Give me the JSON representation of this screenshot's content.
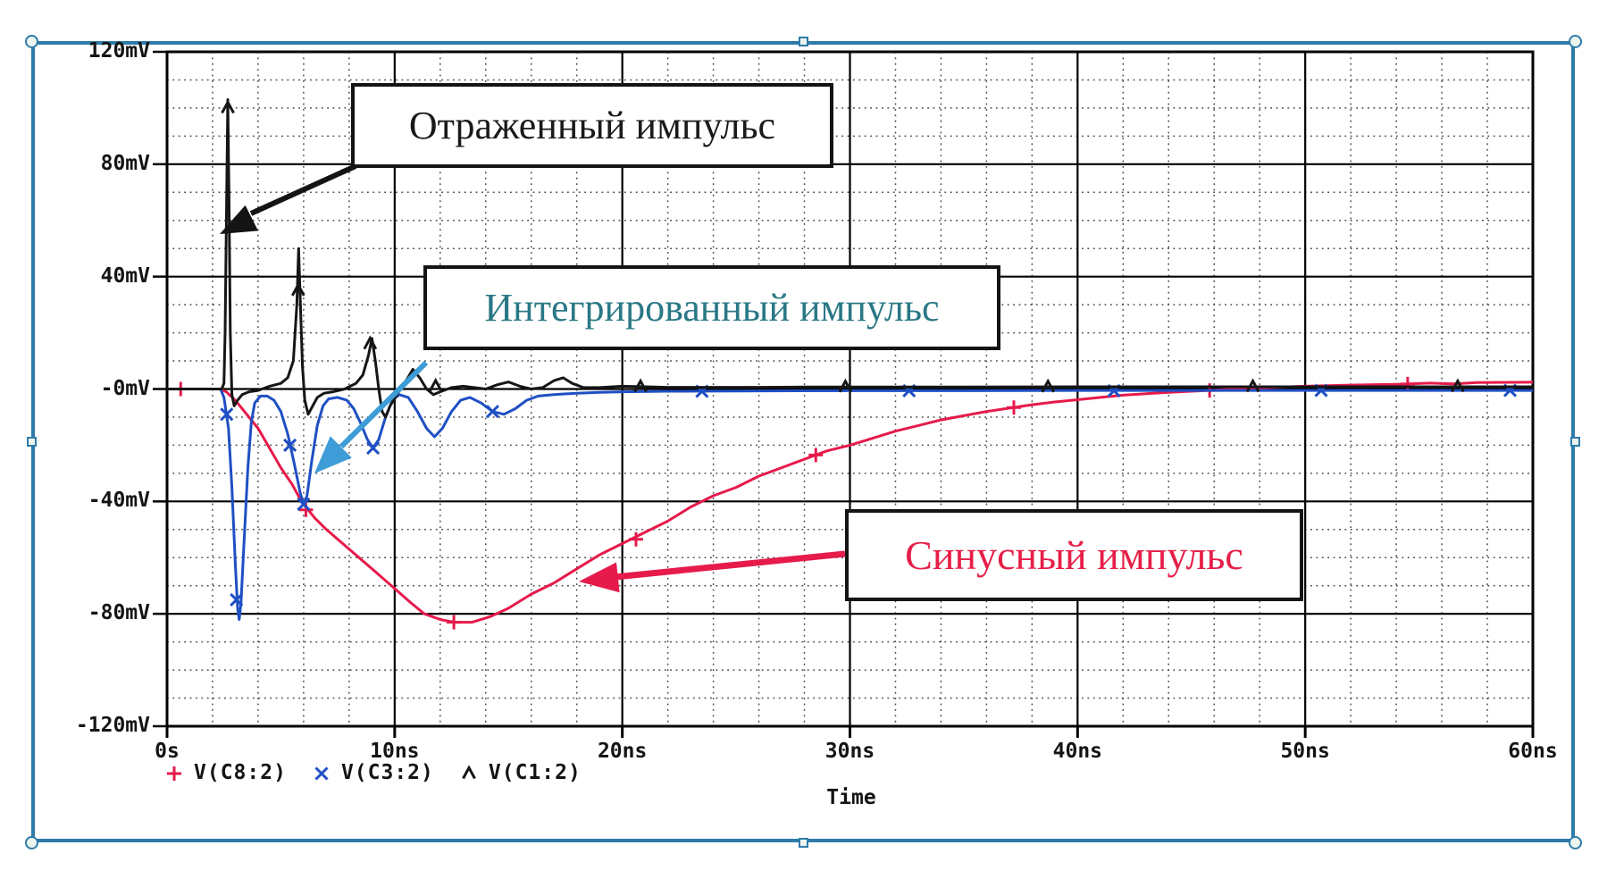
{
  "selection": {
    "border_color": "#2d7ba9",
    "handle_fill": "#edf5ef"
  },
  "chart_data": {
    "type": "line",
    "title": "",
    "xlabel": "Time",
    "ylabel": "",
    "xlim": [
      0,
      60
    ],
    "ylim": [
      -120,
      120
    ],
    "x_major_step": 10,
    "y_major_step": 40,
    "x_minor_step": 2,
    "y_minor_step": 10,
    "grid": "major solid + minor dotted",
    "legend_position": "bottom-left",
    "x_ticks": {
      "labels": [
        "0s",
        "10ns",
        "20ns",
        "30ns",
        "40ns",
        "50ns",
        "60ns"
      ],
      "values": [
        0,
        10,
        20,
        30,
        40,
        50,
        60
      ]
    },
    "y_ticks": {
      "labels": [
        "120mV",
        "80mV",
        "40mV",
        "-0mV",
        "-40mV",
        "-80mV",
        "-120mV"
      ],
      "values": [
        120,
        80,
        40,
        0,
        -40,
        -80,
        -120
      ]
    },
    "series": [
      {
        "name": "V(C8:2)",
        "description_ru": "Синусный импульс",
        "color": "#e61a4b",
        "marker": "plus",
        "points": [
          [
            0,
            0
          ],
          [
            2.3,
            0
          ],
          [
            2.6,
            -1
          ],
          [
            3,
            -4
          ],
          [
            3.5,
            -9
          ],
          [
            4,
            -14
          ],
          [
            4.5,
            -21
          ],
          [
            5,
            -28
          ],
          [
            5.5,
            -34
          ],
          [
            5.9,
            -40
          ],
          [
            6.5,
            -46
          ],
          [
            7,
            -50
          ],
          [
            8,
            -57
          ],
          [
            9,
            -64
          ],
          [
            10,
            -71
          ],
          [
            10.7,
            -76
          ],
          [
            11.3,
            -80
          ],
          [
            12,
            -82
          ],
          [
            12.6,
            -83
          ],
          [
            13.4,
            -83
          ],
          [
            14.2,
            -81
          ],
          [
            15,
            -78
          ],
          [
            16,
            -73
          ],
          [
            17,
            -69
          ],
          [
            18,
            -64
          ],
          [
            19,
            -59
          ],
          [
            20,
            -55
          ],
          [
            21,
            -51
          ],
          [
            22,
            -47
          ],
          [
            23,
            -42
          ],
          [
            24,
            -38
          ],
          [
            25,
            -35
          ],
          [
            26,
            -31
          ],
          [
            27,
            -28
          ],
          [
            28,
            -25
          ],
          [
            29,
            -22
          ],
          [
            30,
            -20
          ],
          [
            31,
            -17.5
          ],
          [
            32,
            -15
          ],
          [
            33,
            -13
          ],
          [
            34,
            -11
          ],
          [
            35,
            -9.5
          ],
          [
            36,
            -8
          ],
          [
            37,
            -6.8
          ],
          [
            38,
            -5.6
          ],
          [
            39,
            -4.6
          ],
          [
            40,
            -3.8
          ],
          [
            41,
            -3
          ],
          [
            42,
            -2.2
          ],
          [
            43,
            -1.7
          ],
          [
            44,
            -1.2
          ],
          [
            45,
            -0.8
          ],
          [
            46,
            -0.4
          ],
          [
            47,
            0
          ],
          [
            48,
            0.4
          ],
          [
            49,
            0.7
          ],
          [
            50,
            1
          ],
          [
            52,
            1.4
          ],
          [
            54,
            1.7
          ],
          [
            55.5,
            2.1
          ],
          [
            56.5,
            1.8
          ],
          [
            57.5,
            2.3
          ],
          [
            60,
            2.4
          ]
        ],
        "marker_points": [
          [
            0.6,
            0
          ],
          [
            6.1,
            -43
          ],
          [
            12.6,
            -83
          ],
          [
            20.6,
            -53.5
          ],
          [
            28.5,
            -23.5
          ],
          [
            37.2,
            -6.6
          ],
          [
            45.8,
            -0.5
          ],
          [
            54.5,
            1.8
          ]
        ]
      },
      {
        "name": "V(C3:2)",
        "description_ru": "Интегрированный импульс",
        "color": "#1f4fc4",
        "marker": "x",
        "points": [
          [
            0,
            0
          ],
          [
            2.35,
            0
          ],
          [
            2.5,
            -3
          ],
          [
            2.7,
            -14
          ],
          [
            2.85,
            -35
          ],
          [
            3,
            -62
          ],
          [
            3.1,
            -78
          ],
          [
            3.17,
            -82
          ],
          [
            3.25,
            -76
          ],
          [
            3.4,
            -52
          ],
          [
            3.55,
            -28
          ],
          [
            3.7,
            -12
          ],
          [
            3.85,
            -5
          ],
          [
            4.1,
            -2.5
          ],
          [
            4.4,
            -2.5
          ],
          [
            4.7,
            -4
          ],
          [
            5,
            -8
          ],
          [
            5.3,
            -16
          ],
          [
            5.6,
            -27
          ],
          [
            5.85,
            -37
          ],
          [
            6,
            -41
          ],
          [
            6.15,
            -38
          ],
          [
            6.35,
            -26
          ],
          [
            6.6,
            -13
          ],
          [
            6.85,
            -6
          ],
          [
            7.1,
            -3.5
          ],
          [
            7.5,
            -3
          ],
          [
            7.9,
            -4
          ],
          [
            8.2,
            -7
          ],
          [
            8.5,
            -12
          ],
          [
            8.8,
            -18
          ],
          [
            9.05,
            -21
          ],
          [
            9.3,
            -18
          ],
          [
            9.6,
            -10
          ],
          [
            9.9,
            -4
          ],
          [
            10.2,
            -2
          ],
          [
            10.6,
            -3
          ],
          [
            11,
            -8
          ],
          [
            11.4,
            -14
          ],
          [
            11.75,
            -17
          ],
          [
            12.1,
            -14
          ],
          [
            12.5,
            -8
          ],
          [
            12.9,
            -4
          ],
          [
            13.3,
            -3
          ],
          [
            13.8,
            -5
          ],
          [
            14.3,
            -8
          ],
          [
            14.8,
            -9
          ],
          [
            15.3,
            -7
          ],
          [
            15.8,
            -4
          ],
          [
            16.3,
            -2.5
          ],
          [
            17,
            -2
          ],
          [
            18,
            -1.5
          ],
          [
            19,
            -1.2
          ],
          [
            20,
            -1
          ],
          [
            22,
            -0.8
          ],
          [
            25,
            -0.7
          ],
          [
            30,
            -0.6
          ],
          [
            35,
            -0.6
          ],
          [
            40,
            -0.5
          ],
          [
            45,
            -0.5
          ],
          [
            50,
            -0.5
          ],
          [
            55,
            -0.5
          ],
          [
            60,
            -0.5
          ]
        ],
        "marker_points": [
          [
            2.62,
            -9
          ],
          [
            3.05,
            -75
          ],
          [
            5.4,
            -20
          ],
          [
            6,
            -41
          ],
          [
            9.05,
            -21
          ],
          [
            14.3,
            -8
          ],
          [
            23.5,
            -0.8
          ],
          [
            32.6,
            -0.6
          ],
          [
            41.6,
            -0.6
          ],
          [
            50.7,
            -0.5
          ],
          [
            59,
            -0.5
          ]
        ]
      },
      {
        "name": "V(C1:2)",
        "description_ru": "Отраженный импульс",
        "color": "#161616",
        "marker": "caret",
        "points": [
          [
            0,
            0
          ],
          [
            2.4,
            0
          ],
          [
            2.5,
            2
          ],
          [
            2.55,
            20
          ],
          [
            2.62,
            70
          ],
          [
            2.67,
            103
          ],
          [
            2.72,
            70
          ],
          [
            2.78,
            20
          ],
          [
            2.85,
            -2
          ],
          [
            2.95,
            -6
          ],
          [
            3.1,
            -4
          ],
          [
            3.3,
            -2
          ],
          [
            3.6,
            -1
          ],
          [
            4,
            -0.5
          ],
          [
            4.5,
            1
          ],
          [
            5,
            2
          ],
          [
            5.3,
            4
          ],
          [
            5.55,
            10
          ],
          [
            5.7,
            30
          ],
          [
            5.78,
            50
          ],
          [
            5.86,
            30
          ],
          [
            5.95,
            8
          ],
          [
            6.05,
            -4
          ],
          [
            6.2,
            -9
          ],
          [
            6.4,
            -6
          ],
          [
            6.6,
            -3
          ],
          [
            6.9,
            -1.5
          ],
          [
            7.3,
            -1
          ],
          [
            7.8,
            0
          ],
          [
            8.3,
            2
          ],
          [
            8.6,
            5
          ],
          [
            8.85,
            12
          ],
          [
            9,
            18
          ],
          [
            9.15,
            10
          ],
          [
            9.3,
            0
          ],
          [
            9.45,
            -8
          ],
          [
            9.6,
            -10
          ],
          [
            9.8,
            -6
          ],
          [
            10.1,
            -2
          ],
          [
            10.5,
            3
          ],
          [
            10.8,
            7
          ],
          [
            11.1,
            4
          ],
          [
            11.4,
            0
          ],
          [
            11.7,
            -2
          ],
          [
            12,
            -1
          ],
          [
            12.5,
            0.5
          ],
          [
            13,
            1
          ],
          [
            13.5,
            0.5
          ],
          [
            14,
            0
          ],
          [
            14.5,
            1.5
          ],
          [
            15,
            2.5
          ],
          [
            15.5,
            1
          ],
          [
            16,
            0
          ],
          [
            16.5,
            0.5
          ],
          [
            17,
            3
          ],
          [
            17.4,
            4
          ],
          [
            17.8,
            2
          ],
          [
            18.3,
            0.5
          ],
          [
            19,
            0.5
          ],
          [
            20,
            1
          ],
          [
            21,
            0.8
          ],
          [
            22,
            0.6
          ],
          [
            24,
            0.6
          ],
          [
            26,
            0.6
          ],
          [
            28,
            0.7
          ],
          [
            30,
            0.7
          ],
          [
            35,
            0.7
          ],
          [
            40,
            0.8
          ],
          [
            45,
            0.8
          ],
          [
            50,
            0.8
          ],
          [
            55,
            0.8
          ],
          [
            60,
            0.8
          ]
        ],
        "marker_points": [
          [
            2.67,
            100
          ],
          [
            5.76,
            35
          ],
          [
            8.92,
            16
          ],
          [
            11.8,
            1
          ],
          [
            20.8,
            0.8
          ],
          [
            29.8,
            0.7
          ],
          [
            38.7,
            0.7
          ],
          [
            47.7,
            0.8
          ],
          [
            56.7,
            0.8
          ]
        ]
      }
    ]
  },
  "legend": {
    "items": [
      {
        "label": "V(C8:2)",
        "series": 0
      },
      {
        "label": "V(C3:2)",
        "series": 1
      },
      {
        "label": "V(C1:2)",
        "series": 2
      }
    ]
  },
  "callouts": [
    {
      "id": "reflected",
      "text": "Отраженный импульс",
      "color": "#1a1a1a"
    },
    {
      "id": "integrated",
      "text": "Интегрированный импульс",
      "color": "#2a7886"
    },
    {
      "id": "sine",
      "text": "Синусный импульс",
      "color": "#e61f48"
    }
  ],
  "arrow_colors": {
    "reflected": "#141414",
    "integrated": "#3e9cd6",
    "sine": "#e61a4b"
  }
}
